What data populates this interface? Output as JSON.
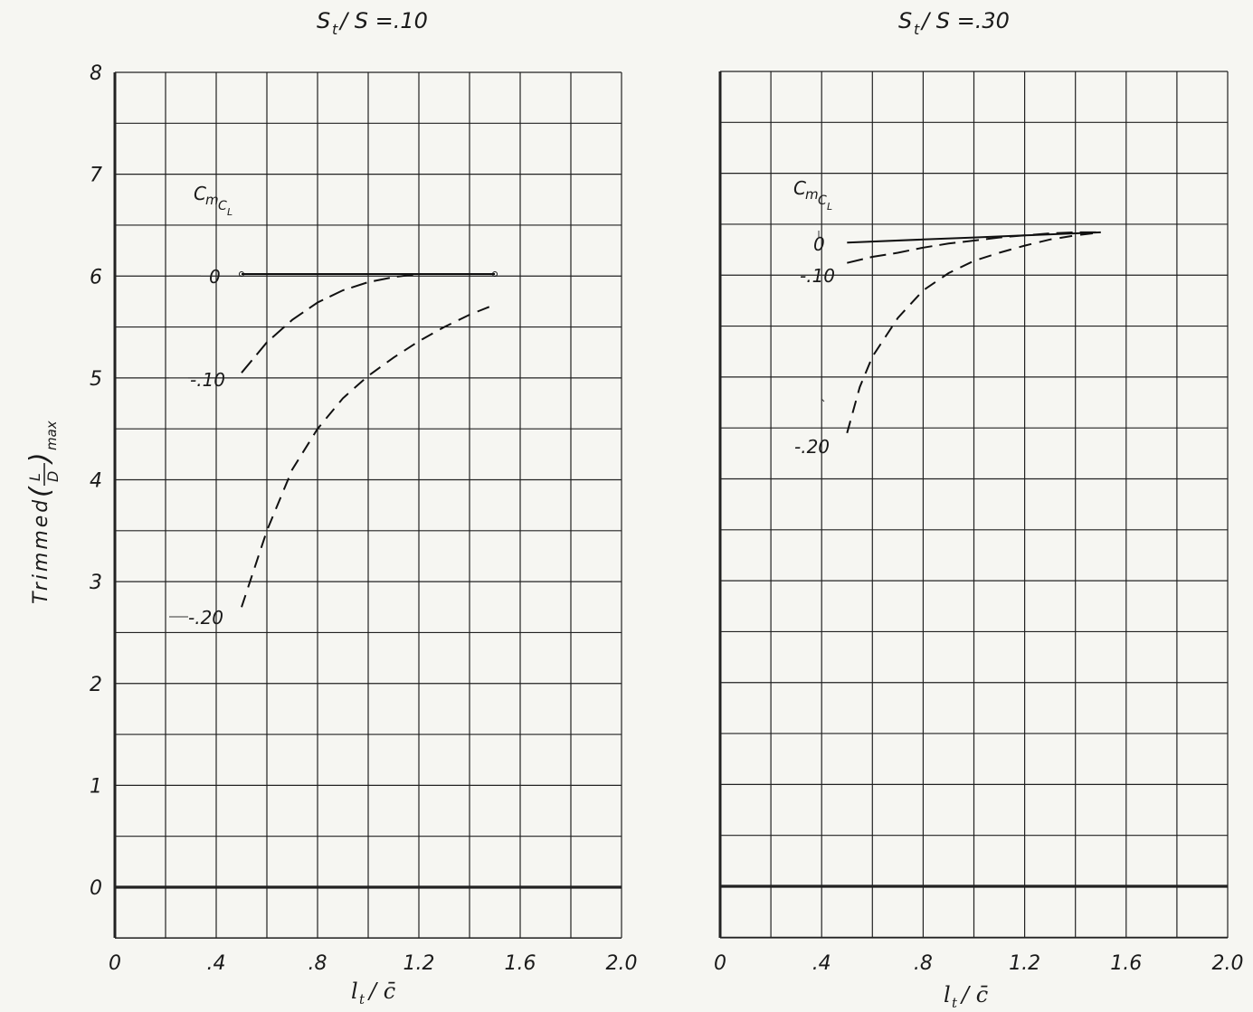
{
  "figure": {
    "ylabel": "Trimmed (L/D)max",
    "ylabel_main": "Trimmed",
    "ylabel_frac_num": "L",
    "ylabel_frac_den": "D",
    "ylabel_sub": "max",
    "legend_title": "C_mC_L",
    "legend_title_main": "C",
    "legend_title_sub1": "m",
    "legend_title_sub2": "C",
    "legend_title_sub3": "L"
  },
  "chart_data": [
    {
      "type": "line",
      "title": "St/S=.10",
      "title_parts": {
        "main": "S",
        "sub": "t",
        "rest": "/ S =.10"
      },
      "xlabel": "lt/c̄",
      "xlabel_parts": {
        "main": "l",
        "sub": "t",
        "rest": "/ c̄"
      },
      "ylabel": "Trimmed (L/D)max",
      "xlim": [
        0,
        2.0
      ],
      "ylim": [
        -0.5,
        8
      ],
      "grid": true,
      "x_ticks": [
        0,
        0.4,
        0.8,
        1.2,
        1.6,
        2.0
      ],
      "x_tick_labels": [
        "0",
        ".4",
        ".8",
        "1.2",
        "1.6",
        "2.0"
      ],
      "y_ticks": [
        0,
        1,
        2,
        3,
        4,
        5,
        6,
        7,
        8
      ],
      "y_tick_labels": [
        "0",
        "1",
        "2",
        "3",
        "4",
        "5",
        "6",
        "7",
        "8"
      ],
      "series": [
        {
          "name": "0",
          "style": "solid",
          "x": [
            0.5,
            0.8,
            1.0,
            1.2,
            1.5
          ],
          "y": [
            6.02,
            6.02,
            6.02,
            6.02,
            6.02
          ]
        },
        {
          "name": "-.10",
          "style": "dashed",
          "x": [
            0.5,
            0.6,
            0.7,
            0.8,
            0.9,
            1.0,
            1.1,
            1.2,
            1.3,
            1.4,
            1.5
          ],
          "y": [
            5.05,
            5.35,
            5.57,
            5.74,
            5.86,
            5.94,
            5.99,
            6.02,
            6.02,
            6.02,
            6.02
          ]
        },
        {
          "name": "-.20",
          "style": "dashed",
          "x": [
            0.5,
            0.6,
            0.7,
            0.8,
            0.9,
            1.0,
            1.1,
            1.2,
            1.3,
            1.4,
            1.5
          ],
          "y": [
            2.75,
            3.5,
            4.1,
            4.5,
            4.8,
            5.02,
            5.2,
            5.36,
            5.5,
            5.62,
            5.72
          ]
        }
      ]
    },
    {
      "type": "line",
      "title": "St/S=.30",
      "title_parts": {
        "main": "S",
        "sub": "t",
        "rest": "/ S =.30"
      },
      "xlabel": "lt/c̄",
      "xlabel_parts": {
        "main": "l",
        "sub": "t",
        "rest": "/ c̄"
      },
      "xlim": [
        0,
        2.0
      ],
      "ylim": [
        -0.5,
        8
      ],
      "grid": true,
      "x_ticks": [
        0,
        0.4,
        0.8,
        1.2,
        1.6,
        2.0
      ],
      "x_tick_labels": [
        "0",
        ".4",
        ".8",
        "1.2",
        "1.6",
        "2.0"
      ],
      "series": [
        {
          "name": "0",
          "style": "solid",
          "x": [
            0.5,
            0.8,
            1.0,
            1.2,
            1.5
          ],
          "y": [
            6.32,
            6.35,
            6.37,
            6.39,
            6.42
          ]
        },
        {
          "name": "-.10",
          "style": "dashed",
          "x": [
            0.5,
            0.6,
            0.7,
            0.8,
            0.9,
            1.0,
            1.1,
            1.2,
            1.3,
            1.4,
            1.5
          ],
          "y": [
            6.12,
            6.18,
            6.22,
            6.27,
            6.31,
            6.34,
            6.37,
            6.39,
            6.41,
            6.42,
            6.42
          ]
        },
        {
          "name": "-.20",
          "style": "dashed",
          "x": [
            0.5,
            0.55,
            0.6,
            0.7,
            0.8,
            0.9,
            1.0,
            1.1,
            1.2,
            1.3,
            1.4,
            1.5
          ],
          "y": [
            4.45,
            4.9,
            5.2,
            5.58,
            5.85,
            6.02,
            6.14,
            6.22,
            6.29,
            6.35,
            6.39,
            6.42
          ]
        }
      ]
    }
  ]
}
